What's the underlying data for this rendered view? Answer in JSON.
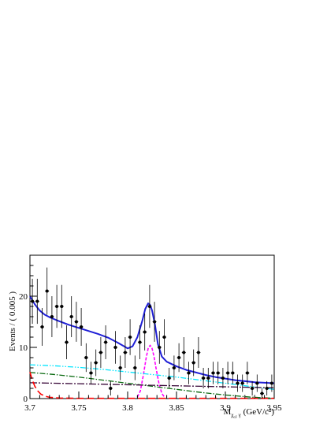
{
  "chart_data": {
    "type": "scatter",
    "title": "",
    "xlabel": "M",
    "xlabel_sub": "χ",
    "xlabel_subsub": "cJ",
    "xlabel_sub2": "γ",
    "xlabel_unit": "(GeV/c²)",
    "ylabel": "Events / ( 0.005 )",
    "xlim": [
      3.7,
      3.95
    ],
    "ylim": [
      0,
      28
    ],
    "x_ticks": [
      3.7,
      3.75,
      3.8,
      3.85,
      3.9,
      3.95
    ],
    "x_tick_labels": [
      "3.7",
      "3.75",
      "3.8",
      "3.85",
      "3.9",
      "3.95"
    ],
    "y_ticks": [
      0,
      10,
      20
    ],
    "y_tick_labels": [
      "0",
      "10",
      "20"
    ],
    "grid": false,
    "legend": "none",
    "colors": {
      "data": "#000000",
      "total_fit": "#1f1fd6",
      "signal": "#ff00ff",
      "cyan_bkg": "#00e5ff",
      "green_bkg": "#0a6a10",
      "purple_bkg": "#3a0a3a",
      "red_bkg": "#ff0000"
    },
    "data_points": {
      "x": [
        3.7025,
        3.7075,
        3.7125,
        3.7175,
        3.7225,
        3.7275,
        3.7325,
        3.7375,
        3.7425,
        3.7475,
        3.7525,
        3.7575,
        3.7625,
        3.7675,
        3.7725,
        3.7775,
        3.7825,
        3.7875,
        3.7925,
        3.7975,
        3.8025,
        3.8075,
        3.8125,
        3.8175,
        3.8225,
        3.8275,
        3.8325,
        3.8375,
        3.8425,
        3.8475,
        3.8525,
        3.8575,
        3.8625,
        3.8675,
        3.8725,
        3.8775,
        3.8825,
        3.8875,
        3.8925,
        3.8975,
        3.9025,
        3.9075,
        3.9125,
        3.9175,
        3.9225,
        3.9275,
        3.9325,
        3.9375,
        3.9425,
        3.9475
      ],
      "y": [
        19,
        19,
        14,
        21,
        16,
        18,
        18,
        11,
        16,
        15,
        14,
        8,
        5,
        7,
        9,
        11,
        2,
        10,
        6,
        9,
        12,
        6,
        11,
        13,
        18,
        15,
        10,
        12,
        4,
        6,
        8,
        9,
        5,
        7,
        9,
        4,
        4,
        5,
        5,
        4,
        5,
        5,
        3,
        3,
        5,
        2,
        3,
        1,
        2,
        3
      ],
      "yerr": [
        4.4,
        4.4,
        3.7,
        4.6,
        4.0,
        4.2,
        4.2,
        3.3,
        4.0,
        3.9,
        3.7,
        2.8,
        2.2,
        2.6,
        3.0,
        3.3,
        1.4,
        3.2,
        2.4,
        3.0,
        3.5,
        2.4,
        3.3,
        3.6,
        4.2,
        3.9,
        3.2,
        3.5,
        2.0,
        2.4,
        2.8,
        3.0,
        2.2,
        2.6,
        3.0,
        2.0,
        2.0,
        2.2,
        2.2,
        2.0,
        2.2,
        2.2,
        1.7,
        1.7,
        2.2,
        1.4,
        1.7,
        1.0,
        1.4,
        1.7
      ]
    },
    "series": [
      {
        "style": "solid",
        "color_key": "total_fit",
        "x": [
          3.7,
          3.705,
          3.71,
          3.715,
          3.72,
          3.725,
          3.73,
          3.74,
          3.75,
          3.76,
          3.77,
          3.78,
          3.79,
          3.8,
          3.805,
          3.81,
          3.815,
          3.818,
          3.821,
          3.823,
          3.825,
          3.828,
          3.831,
          3.835,
          3.84,
          3.85,
          3.86,
          3.87,
          3.88,
          3.89,
          3.9,
          3.91,
          3.92,
          3.93,
          3.94,
          3.95
        ],
        "y": [
          20,
          18.4,
          17.2,
          16.4,
          15.9,
          15.5,
          15.1,
          14.4,
          13.8,
          13.2,
          12.6,
          11.9,
          10.9,
          9.8,
          10.2,
          12.0,
          15.2,
          17.5,
          18.6,
          18.3,
          17.2,
          14.4,
          10.6,
          8.2,
          7.2,
          6.3,
          5.6,
          5.1,
          4.6,
          4.2,
          3.9,
          3.6,
          3.4,
          3.2,
          3.1,
          3.0
        ]
      },
      {
        "style": "dashed",
        "color_key": "signal",
        "x": [
          3.81,
          3.813,
          3.816,
          3.819,
          3.821,
          3.823,
          3.825,
          3.827,
          3.829,
          3.832,
          3.835,
          3.838
        ],
        "y": [
          0.3,
          1.5,
          4.5,
          8.0,
          9.8,
          10.4,
          9.8,
          8.2,
          6.0,
          3.0,
          1.0,
          0.2
        ]
      },
      {
        "style": "dash-dot-dot",
        "color_key": "cyan_bkg",
        "x": [
          3.7,
          3.725,
          3.75,
          3.775,
          3.8,
          3.825,
          3.85,
          3.875,
          3.9,
          3.925,
          3.95
        ],
        "y": [
          6.6,
          6.4,
          6.1,
          5.7,
          5.2,
          4.7,
          4.2,
          3.6,
          3.0,
          2.4,
          1.8
        ]
      },
      {
        "style": "dash-dot",
        "color_key": "green_bkg",
        "x": [
          3.7,
          3.725,
          3.75,
          3.775,
          3.8,
          3.825,
          3.85,
          3.875,
          3.9,
          3.925,
          3.95
        ],
        "y": [
          5.1,
          4.7,
          4.2,
          3.6,
          3.0,
          2.4,
          1.8,
          1.2,
          0.7,
          0.3,
          0.05
        ]
      },
      {
        "style": "dash-dot-long",
        "color_key": "purple_bkg",
        "x": [
          3.7,
          3.725,
          3.75,
          3.775,
          3.8,
          3.825,
          3.85,
          3.875,
          3.9,
          3.925,
          3.95
        ],
        "y": [
          3.1,
          3.0,
          2.9,
          2.8,
          2.7,
          2.6,
          2.5,
          2.4,
          2.3,
          2.2,
          2.1
        ]
      },
      {
        "style": "long-dashed",
        "color_key": "red_bkg",
        "x": [
          3.7,
          3.702,
          3.705,
          3.708,
          3.711,
          3.715,
          3.72,
          3.73,
          3.75,
          3.8,
          3.85,
          3.9,
          3.95
        ],
        "y": [
          5.2,
          3.8,
          2.4,
          1.5,
          0.9,
          0.5,
          0.25,
          0.1,
          0.05,
          0.05,
          0.05,
          0.05,
          0.05
        ]
      }
    ]
  }
}
